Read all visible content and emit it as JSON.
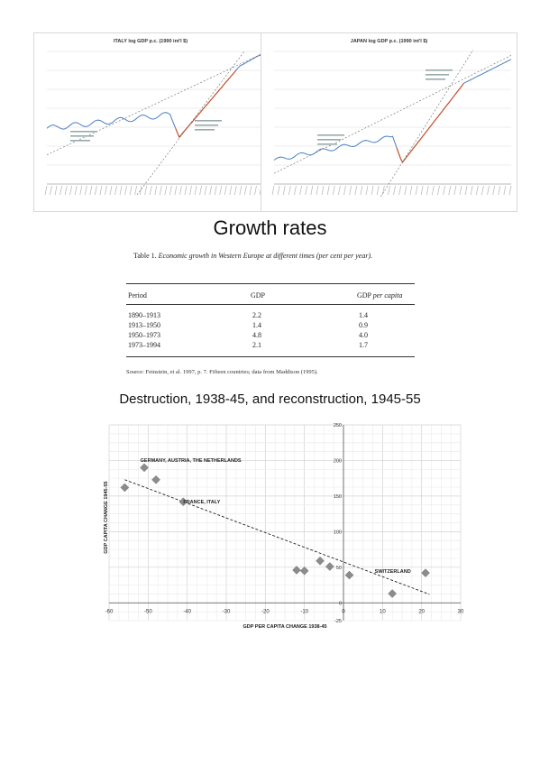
{
  "charts_top": [
    {
      "title": "ITALY log GDP p.c. (1990 int'l $)",
      "color_series": "#4a7fc1",
      "color_highlight": "#c0502a",
      "color_trend": "#666666"
    },
    {
      "title": "JAPAN log GDP p.c. (1990 int'l $)",
      "color_series": "#4a7fc1",
      "color_highlight": "#c0502a",
      "color_trend": "#666666"
    }
  ],
  "growth": {
    "heading": "Growth rates",
    "caption_label": "Table 1.",
    "caption_text": "Economic growth in Western Europe at different times (per cent per year).",
    "columns": [
      "Period",
      "GDP",
      "GDP per capita"
    ],
    "rows": [
      [
        "1890–1913",
        "2.2",
        "1.4"
      ],
      [
        "1913–1950",
        "1.4",
        "0.9"
      ],
      [
        "1950–1973",
        "4.8",
        "4.0"
      ],
      [
        "1973–1994",
        "2.1",
        "1.7"
      ]
    ],
    "source": "Source: Feinstein, et al. 1997, p. 7. Fifteen countries; data from Maddison (1995)."
  },
  "destruction": {
    "heading": "Destruction, 1938-45, and reconstruction, 1945-55"
  },
  "chart_data": {
    "type": "scatter",
    "title": "",
    "xlabel": "GDP PER CAPITA CHANGE 1938-45",
    "ylabel": "GDP CAPITA CHANGE 1945-55",
    "xlim": [
      -60,
      30
    ],
    "ylim": [
      -25,
      250
    ],
    "x_ticks": [
      "-60",
      "-50",
      "-40",
      "-30",
      "-20",
      "-10",
      "0",
      "10",
      "20",
      "30"
    ],
    "y_ticks": [
      "250",
      "200",
      "150",
      "100",
      "50",
      "0",
      "-25"
    ],
    "grid": true,
    "marker_color": "#8c8c8c",
    "points": [
      {
        "x": -56,
        "y": 162
      },
      {
        "x": -51,
        "y": 190
      },
      {
        "x": -48,
        "y": 173
      },
      {
        "x": -41,
        "y": 142
      },
      {
        "x": -12,
        "y": 46
      },
      {
        "x": -10,
        "y": 45
      },
      {
        "x": -6,
        "y": 59
      },
      {
        "x": -3.5,
        "y": 51
      },
      {
        "x": 1.5,
        "y": 39
      },
      {
        "x": 12.5,
        "y": 13
      },
      {
        "x": 21,
        "y": 42
      }
    ],
    "annotations": [
      {
        "text": "GERMANY, AUSTRIA, THE NETHERLANDS",
        "x": -52,
        "y": 198
      },
      {
        "text": "FRANCE, ITALY",
        "x": -41,
        "y": 140
      },
      {
        "text": "SWITZERLAND",
        "x": 8,
        "y": 42
      }
    ],
    "trendline": {
      "x": [
        -56,
        22
      ],
      "y": [
        173,
        12
      ]
    }
  }
}
